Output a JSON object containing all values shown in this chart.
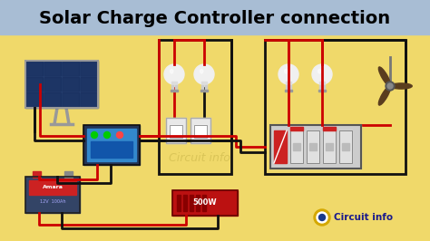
{
  "title": "Solar Charge Controller connection",
  "title_fontsize": 14,
  "title_bg": "#a8bdd4",
  "bg_color": "#f0d96a",
  "wire_red": "#cc0000",
  "wire_black": "#111111",
  "text_watermark": "Circuit info",
  "watermark_color": "#c8b448",
  "logo_text": "Circuit info",
  "logo_color": "#1a1a8c",
  "logo_circle_outer": "#d4a800",
  "logo_circle_inner": "#1a3a8a",
  "figsize": [
    4.74,
    2.66
  ],
  "dpi": 100
}
